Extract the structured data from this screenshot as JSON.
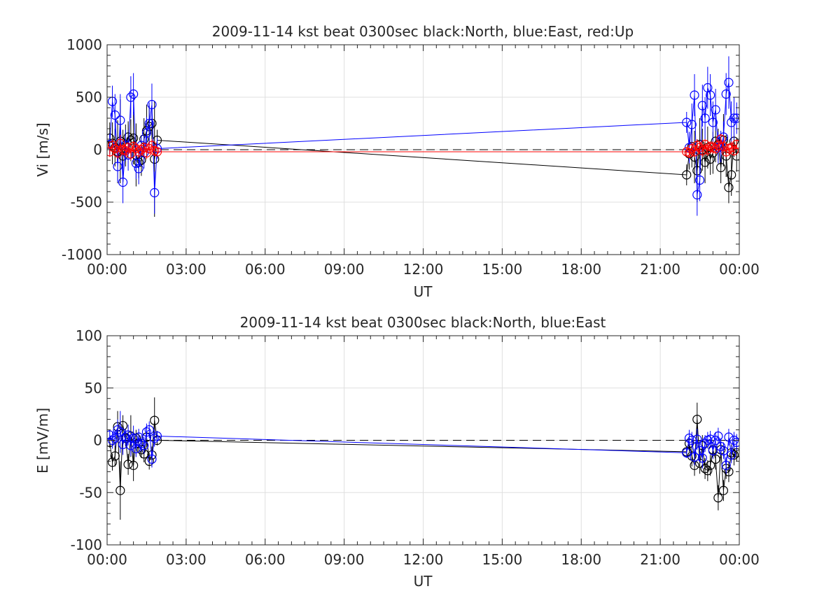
{
  "chart_data": [
    {
      "type": "line",
      "title": "2009-11-14 kst beat 0300sec black:North, blue:East, red:Up",
      "xlabel": "UT",
      "ylabel": "Vi [m/s]",
      "xlim": [
        0,
        24
      ],
      "ylim": [
        -1000,
        1000
      ],
      "xticks": [
        0,
        3,
        6,
        9,
        12,
        15,
        18,
        21,
        24
      ],
      "xtick_labels": [
        "00:00",
        "03:00",
        "06:00",
        "09:00",
        "12:00",
        "15:00",
        "18:00",
        "21:00",
        "00:00"
      ],
      "yticks": [
        -1000,
        -500,
        0,
        500,
        1000
      ],
      "ytick_labels": [
        "-1000",
        "-500",
        "0",
        "500",
        "1000"
      ],
      "grid": true,
      "zero_line": true,
      "series": [
        {
          "color": "#000000",
          "x": [
            0.1,
            0.2,
            0.3,
            0.4,
            0.5,
            0.6,
            0.7,
            0.8,
            0.9,
            1.0,
            1.1,
            1.2,
            1.3,
            1.4,
            1.5,
            1.6,
            1.7,
            1.8,
            1.9,
            22.0,
            22.1,
            22.2,
            22.3,
            22.4,
            22.5,
            22.6,
            22.7,
            22.8,
            22.9,
            23.0,
            23.1,
            23.2,
            23.3,
            23.4,
            23.5,
            23.6,
            23.7,
            23.8,
            23.9
          ],
          "y": [
            110,
            60,
            20,
            -20,
            80,
            -60,
            40,
            120,
            90,
            110,
            -50,
            -120,
            -100,
            100,
            180,
            220,
            250,
            -90,
            90,
            -240,
            -40,
            30,
            -70,
            -200,
            50,
            0,
            -120,
            20,
            -90,
            -30,
            80,
            50,
            -170,
            90,
            -60,
            -360,
            -240,
            80,
            -60
          ],
          "err": [
            150,
            200,
            180,
            300,
            400,
            250,
            200,
            150,
            200,
            250,
            300,
            150,
            150,
            200,
            250,
            200,
            150,
            550,
            100,
            100,
            150,
            200,
            250,
            300,
            250,
            200,
            200,
            200,
            150,
            200,
            200,
            150,
            150,
            250,
            200,
            150,
            200,
            150,
            150
          ]
        },
        {
          "color": "#0000ff",
          "x": [
            0.1,
            0.2,
            0.3,
            0.4,
            0.5,
            0.6,
            0.7,
            0.8,
            0.9,
            1.0,
            1.1,
            1.2,
            1.3,
            1.4,
            1.5,
            1.6,
            1.7,
            1.8,
            1.9,
            22.0,
            22.1,
            22.2,
            22.3,
            22.4,
            22.5,
            22.6,
            22.7,
            22.8,
            22.9,
            23.0,
            23.1,
            23.2,
            23.3,
            23.4,
            23.5,
            23.6,
            23.7,
            23.8,
            23.9
          ],
          "y": [
            50,
            460,
            330,
            -160,
            280,
            -310,
            40,
            -50,
            500,
            530,
            -130,
            -180,
            40,
            -30,
            160,
            250,
            430,
            -410,
            10,
            260,
            20,
            240,
            520,
            -430,
            -290,
            420,
            300,
            590,
            520,
            260,
            380,
            20,
            30,
            120,
            530,
            640,
            260,
            300,
            300
          ],
          "err": [
            100,
            150,
            200,
            150,
            250,
            200,
            150,
            150,
            200,
            200,
            150,
            150,
            100,
            150,
            150,
            200,
            200,
            200,
            100,
            100,
            150,
            200,
            200,
            200,
            200,
            200,
            200,
            200,
            200,
            200,
            200,
            150,
            150,
            150,
            200,
            250,
            200,
            200,
            150
          ]
        },
        {
          "color": "#ff0000",
          "x": [
            0.1,
            0.2,
            0.3,
            0.4,
            0.5,
            0.6,
            0.7,
            0.8,
            0.9,
            1.0,
            1.1,
            1.2,
            1.3,
            1.4,
            1.5,
            1.6,
            1.7,
            1.8,
            1.9,
            22.0,
            22.1,
            22.2,
            22.3,
            22.4,
            22.5,
            22.6,
            22.7,
            22.8,
            22.9,
            23.0,
            23.1,
            23.2,
            23.3,
            23.4,
            23.5,
            23.6,
            23.7,
            23.8,
            23.9
          ],
          "y": [
            -20,
            40,
            10,
            -30,
            60,
            0,
            -10,
            20,
            -40,
            30,
            10,
            -20,
            0,
            20,
            -30,
            10,
            40,
            -10,
            -20,
            -20,
            -30,
            10,
            -20,
            40,
            20,
            -10,
            50,
            0,
            30,
            20,
            10,
            40,
            100,
            30,
            -20,
            10,
            20,
            -10,
            50
          ],
          "err": [
            50,
            60,
            50,
            60,
            80,
            50,
            60,
            50,
            60,
            50,
            50,
            60,
            50,
            50,
            60,
            50,
            60,
            50,
            40,
            40,
            50,
            60,
            50,
            60,
            50,
            60,
            50,
            60,
            50,
            60,
            50,
            60,
            50,
            60,
            50,
            50,
            60,
            50,
            50
          ]
        }
      ]
    },
    {
      "type": "line",
      "title": "2009-11-14 kst beat 0300sec black:North, blue:East",
      "xlabel": "UT",
      "ylabel": "E [mV/m]",
      "xlim": [
        0,
        24
      ],
      "ylim": [
        -100,
        100
      ],
      "xticks": [
        0,
        3,
        6,
        9,
        12,
        15,
        18,
        21,
        24
      ],
      "xtick_labels": [
        "00:00",
        "03:00",
        "06:00",
        "09:00",
        "12:00",
        "15:00",
        "18:00",
        "21:00",
        "00:00"
      ],
      "yticks": [
        -100,
        -50,
        0,
        50,
        100
      ],
      "ytick_labels": [
        "-100",
        "-50",
        "0",
        "50",
        "100"
      ],
      "grid": true,
      "zero_line": true,
      "series": [
        {
          "color": "#000000",
          "x": [
            0.1,
            0.2,
            0.3,
            0.4,
            0.5,
            0.6,
            0.7,
            0.8,
            0.9,
            1.0,
            1.1,
            1.2,
            1.3,
            1.4,
            1.5,
            1.6,
            1.7,
            1.8,
            1.9,
            22.0,
            22.1,
            22.2,
            22.3,
            22.4,
            22.5,
            22.6,
            22.7,
            22.8,
            22.9,
            23.0,
            23.1,
            23.2,
            23.3,
            23.4,
            23.5,
            23.6,
            23.7,
            23.8,
            23.9
          ],
          "y": [
            -2,
            -21,
            -15,
            13,
            -48,
            14,
            2,
            -23,
            4,
            -24,
            2,
            -3,
            -9,
            -13,
            3,
            -20,
            -14,
            19,
            0,
            -11,
            -3,
            -15,
            -24,
            20,
            -22,
            -5,
            -27,
            -29,
            -24,
            -9,
            -18,
            -55,
            -9,
            -48,
            -27,
            -30,
            -12,
            -14,
            -12
          ],
          "err": [
            5,
            8,
            10,
            15,
            28,
            10,
            8,
            10,
            20,
            15,
            8,
            8,
            8,
            8,
            10,
            8,
            8,
            22,
            5,
            5,
            8,
            10,
            10,
            16,
            10,
            10,
            10,
            10,
            10,
            8,
            10,
            12,
            8,
            10,
            10,
            10,
            8,
            10,
            8
          ]
        },
        {
          "color": "#0000ff",
          "x": [
            0.1,
            0.2,
            0.3,
            0.4,
            0.5,
            0.6,
            0.7,
            0.8,
            0.9,
            1.0,
            1.1,
            1.2,
            1.3,
            1.4,
            1.5,
            1.6,
            1.7,
            1.8,
            1.9,
            22.0,
            22.1,
            22.2,
            22.3,
            22.4,
            22.5,
            22.6,
            22.7,
            22.8,
            22.9,
            23.0,
            23.1,
            23.2,
            23.3,
            23.4,
            23.5,
            23.6,
            23.7,
            23.8,
            23.9
          ],
          "y": [
            5,
            0,
            2,
            10,
            8,
            -4,
            3,
            5,
            -5,
            2,
            -8,
            3,
            -3,
            -5,
            8,
            10,
            -18,
            2,
            4,
            -12,
            2,
            0,
            -16,
            1,
            -10,
            -17,
            -3,
            0,
            1,
            -10,
            0,
            4,
            -6,
            -10,
            -24,
            3,
            -14,
            0,
            -2
          ],
          "err": [
            5,
            8,
            8,
            10,
            20,
            10,
            8,
            10,
            10,
            12,
            8,
            8,
            8,
            8,
            8,
            8,
            8,
            8,
            5,
            5,
            8,
            8,
            8,
            10,
            10,
            10,
            8,
            8,
            8,
            8,
            8,
            8,
            8,
            8,
            8,
            8,
            8,
            8,
            8
          ]
        }
      ]
    }
  ]
}
